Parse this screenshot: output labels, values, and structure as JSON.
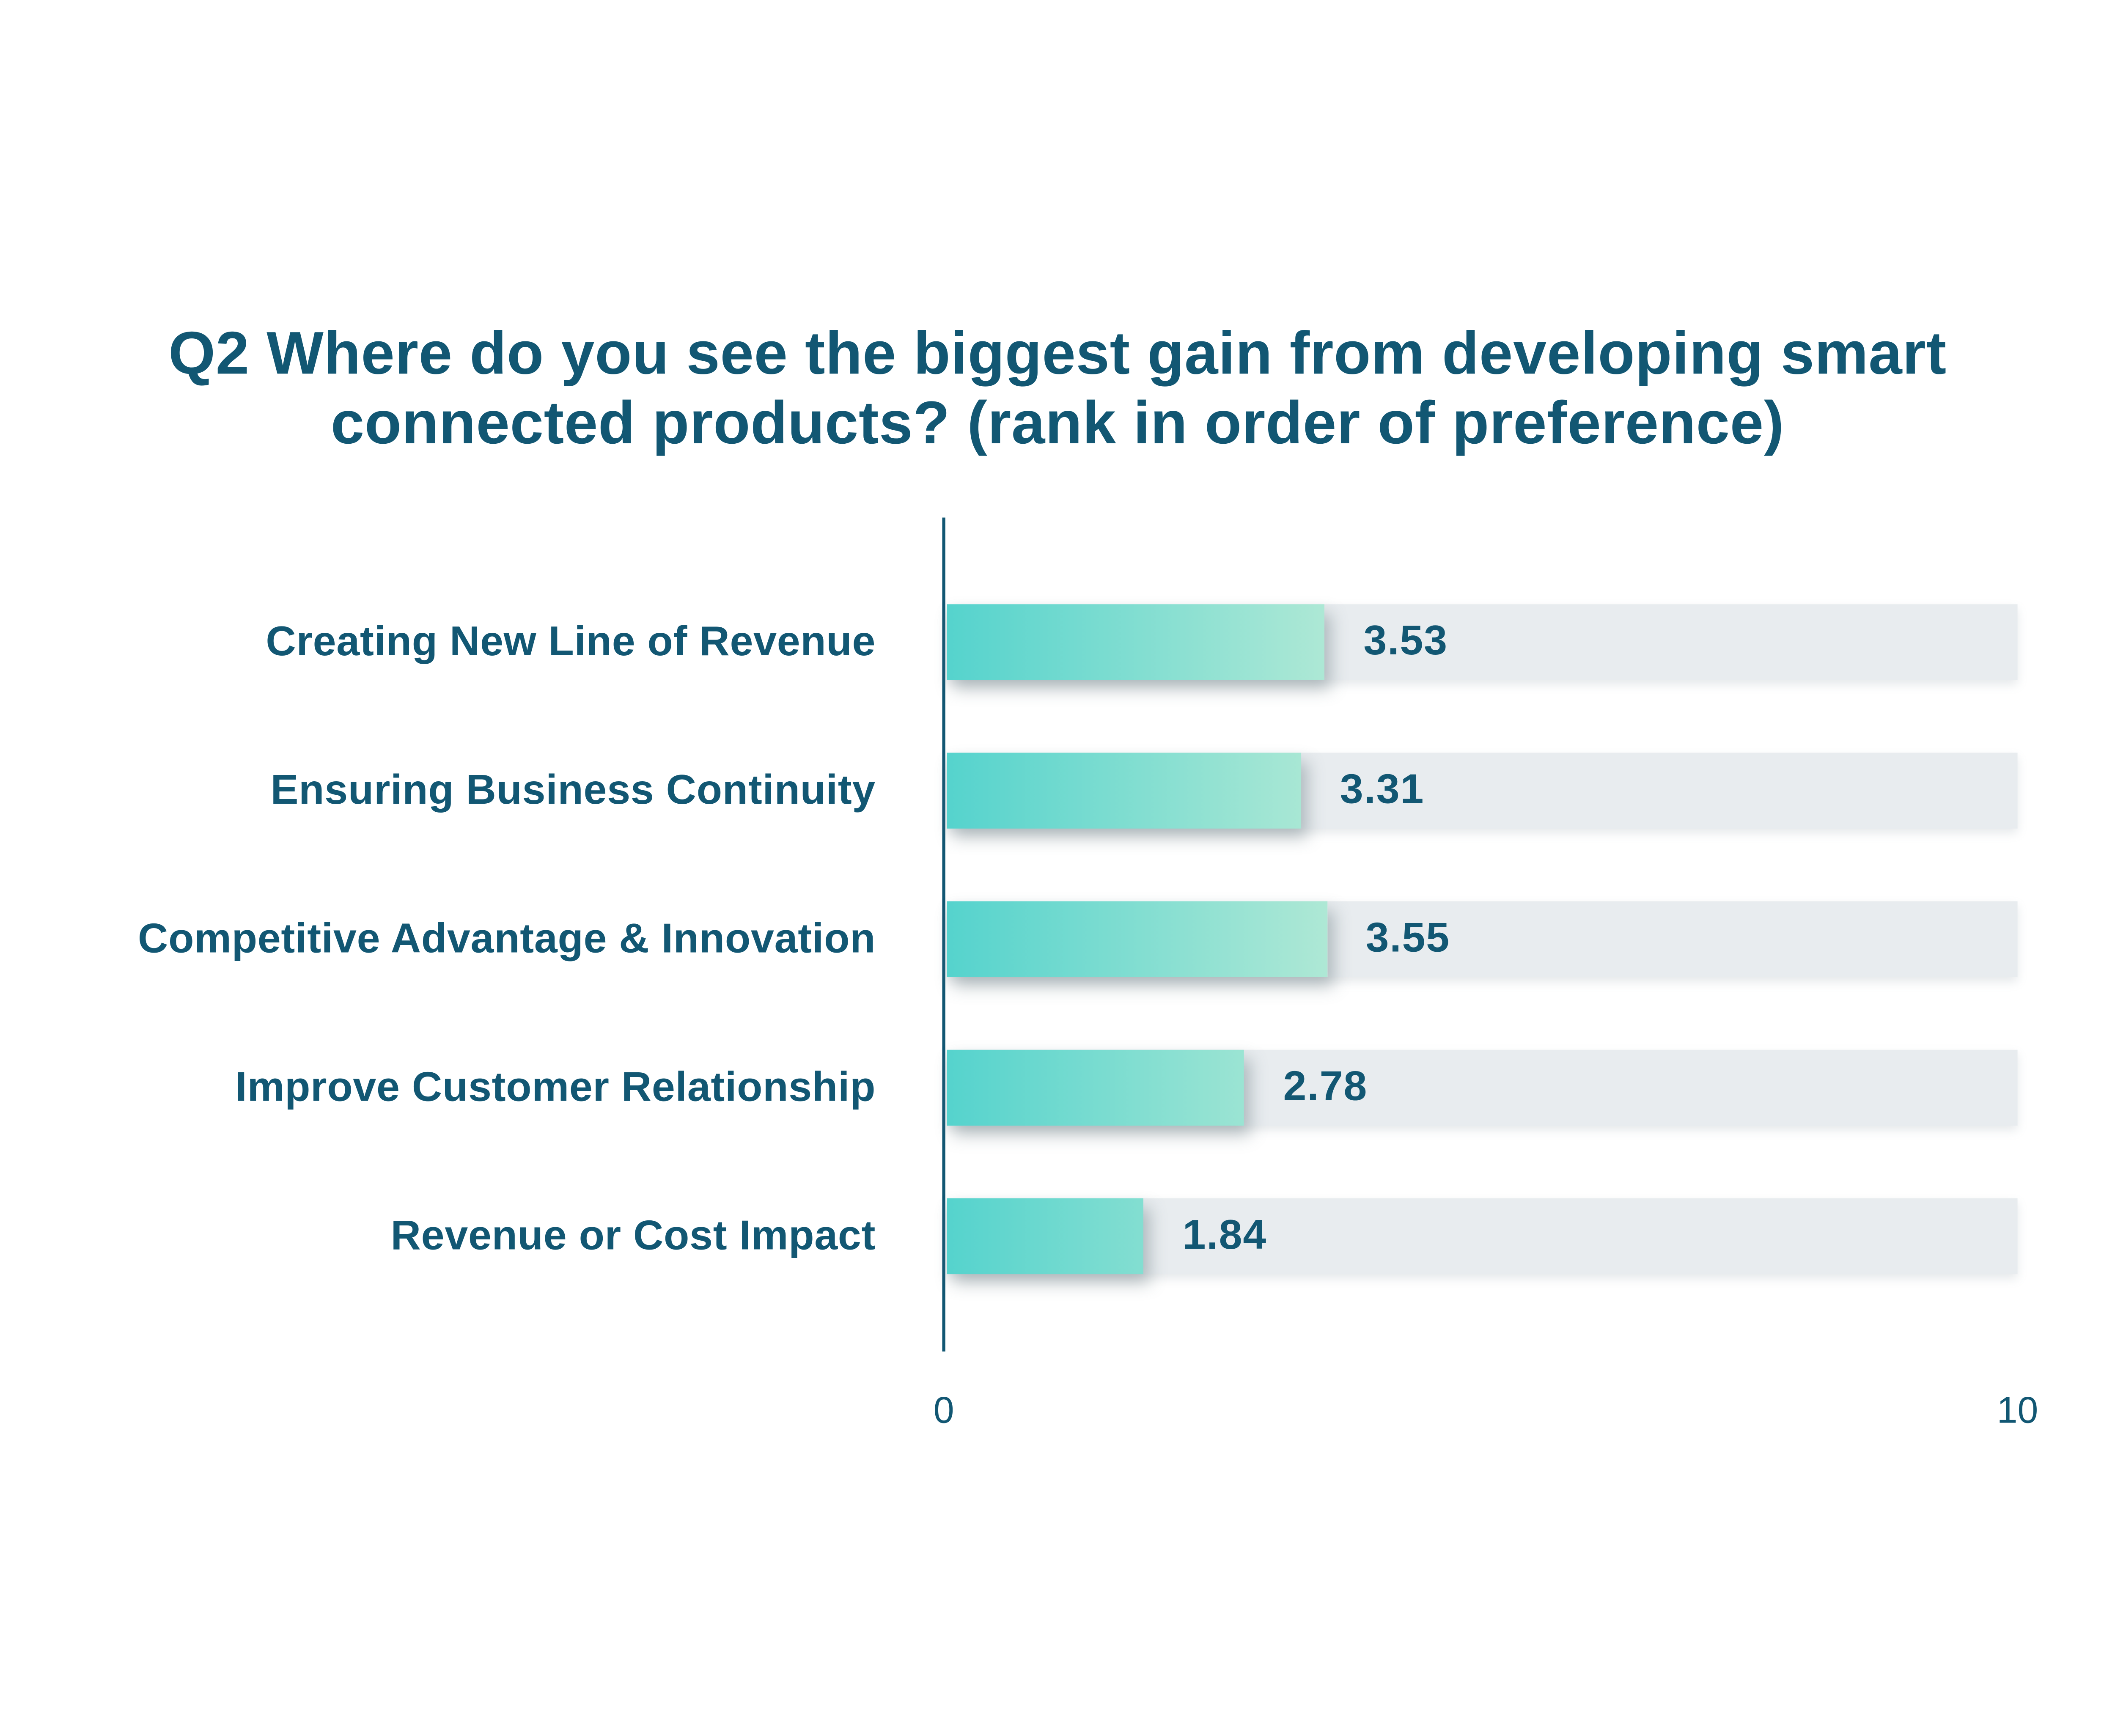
{
  "page": {
    "background": "#FFFFFF"
  },
  "title": {
    "lines": [
      "Q2 Where do you see the biggest gain from developing smart",
      "connected products? (rank in order of preference)"
    ],
    "color": "#125773"
  },
  "chart_data": {
    "type": "bar",
    "orientation": "horizontal",
    "title": "Q2 Where do you see the biggest gain from developing smart connected products? (rank in order of preference)",
    "categories": [
      "Creating New Line of Revenue",
      "Ensuring Business Continuity",
      "Competitive Advantage & Innovation",
      "Improve Customer Relationship",
      "Revenue or Cost Impact"
    ],
    "values": [
      3.53,
      3.31,
      3.55,
      2.78,
      1.84
    ],
    "value_labels": [
      "3.53",
      "3.31",
      "3.55",
      "2.78",
      "1.84"
    ],
    "xlabel": "",
    "ylabel": "",
    "xlim": [
      0,
      10
    ],
    "x_ticks": [
      "0",
      "10"
    ],
    "grid": false,
    "legend": false,
    "styles": {
      "text_color": "#125773",
      "axis_line_color": "#125773",
      "track_color": "#E8ECEF",
      "bar_gradient_start": "#55D3CD",
      "bar_gradient_end_max": "#BEECD6",
      "gradient_span_units": 4.2
    }
  }
}
